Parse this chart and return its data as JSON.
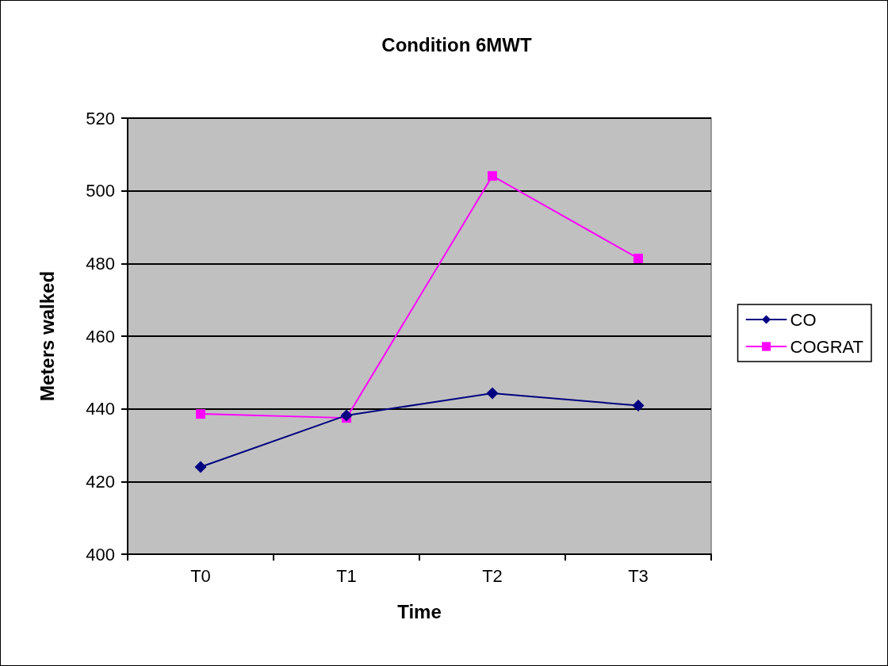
{
  "chart_data": {
    "type": "line",
    "title": "Condition 6MWT",
    "xlabel": "Time",
    "ylabel": "Meters walked",
    "categories": [
      "T0",
      "T1",
      "T2",
      "T3"
    ],
    "series": [
      {
        "name": "CO",
        "color": "#000080",
        "marker": "diamond",
        "values": [
          424,
          438.2,
          444.3,
          440.9
        ]
      },
      {
        "name": "COGRAT",
        "color": "#ff00ff",
        "marker": "square",
        "values": [
          438.6,
          437.5,
          504.1,
          481.4
        ]
      }
    ],
    "ylim": [
      400,
      520
    ],
    "yticks": [
      400,
      420,
      440,
      460,
      480,
      500,
      520
    ],
    "grid": "y",
    "legend": "right"
  }
}
